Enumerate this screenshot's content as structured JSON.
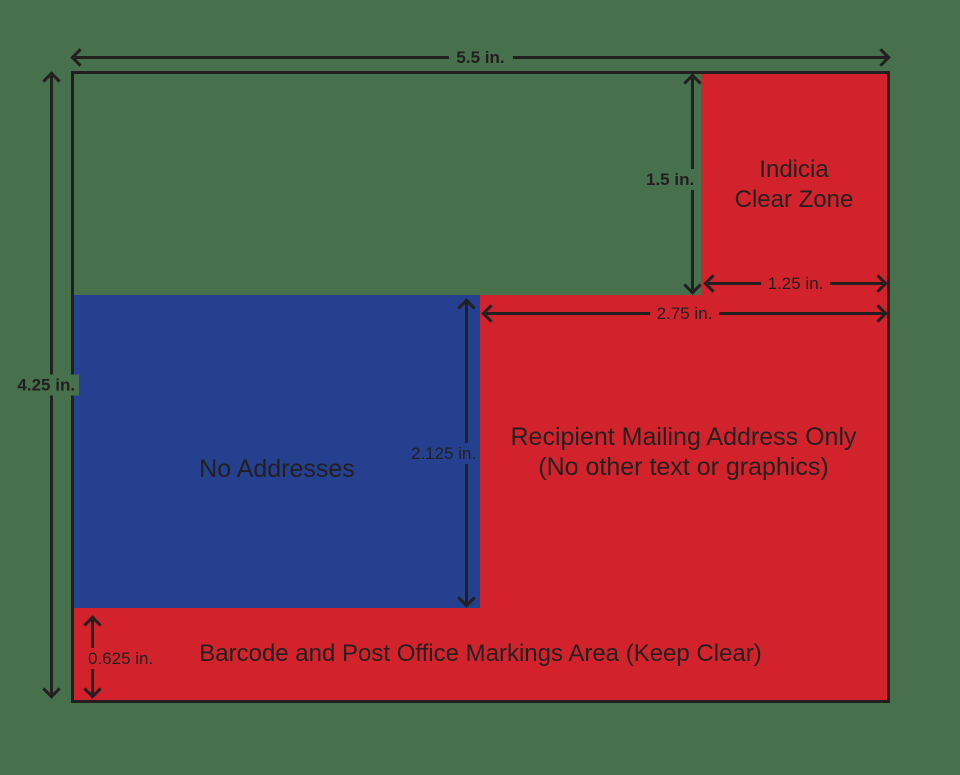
{
  "colors": {
    "background": "#47704C",
    "zone_red": "#D2232D",
    "zone_blue": "#25408E",
    "line_black": "#231F20"
  },
  "dimensions": {
    "card_width": "5.5 in.",
    "card_height": "4.25 in.",
    "indicia_height": "1.5 in.",
    "indicia_width": "1.25 in.",
    "address_zone_width": "2.75 in.",
    "address_zone_height": "2.125 in.",
    "barcode_zone_height": "0.625 in."
  },
  "zones": {
    "indicia": {
      "line1": "Indicia",
      "line2": "Clear Zone"
    },
    "no_addresses": {
      "label": "No Addresses"
    },
    "recipient": {
      "line1": "Recipient Mailing Address Only",
      "line2": "(No other text or graphics)"
    },
    "barcode": {
      "label": "Barcode and Post Office Markings Area (Keep Clear)"
    }
  }
}
